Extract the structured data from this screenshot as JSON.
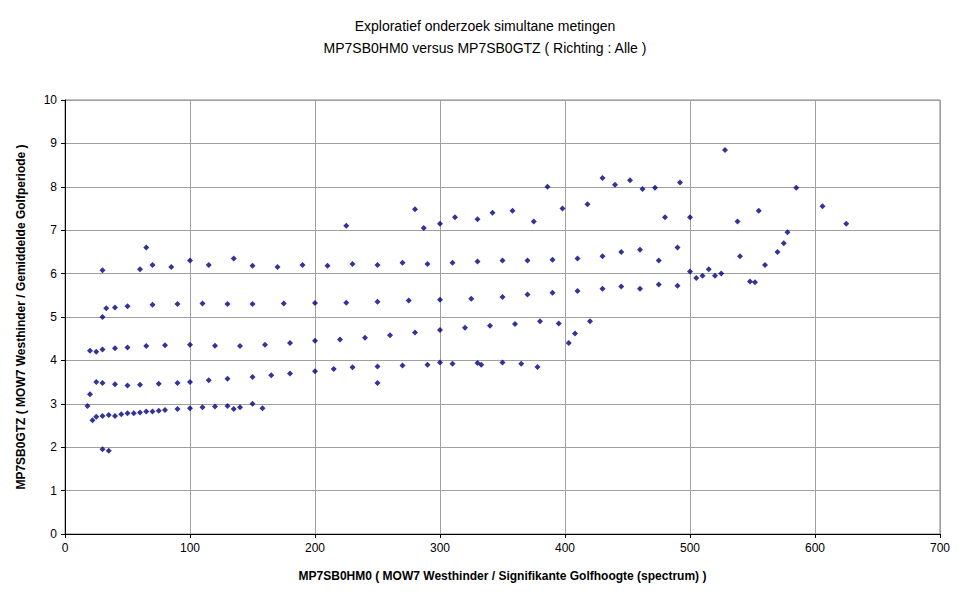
{
  "chart_data": {
    "type": "scatter",
    "title": "Exploratief onderzoek simultane metingen",
    "subtitle": "MP7SB0HM0 versus MP7SB0GTZ ( Richting : Alle )",
    "x_label": "MP7SB0HM0 ( MOW7 Westhinder / Signifikante Golfhoogte (spectrum) )",
    "y_label": "MP7SB0GTZ ( MOW7 Westhinder / Gemiddelde Golfperiode )",
    "color": "#000080",
    "marker": "diamond",
    "grid": true,
    "xlim": [
      0,
      700
    ],
    "xticks": [
      0,
      100,
      200,
      300,
      400,
      500,
      600,
      700
    ],
    "ylim": [
      0,
      10
    ],
    "yticks": [
      0,
      1,
      2,
      3,
      4,
      5,
      6,
      7,
      8,
      9,
      10
    ],
    "x": [
      25,
      30,
      35,
      40,
      45,
      50,
      55,
      60,
      65,
      70,
      75,
      80,
      90,
      100,
      110,
      120,
      130,
      135,
      140,
      150,
      158,
      25,
      30,
      40,
      50,
      60,
      75,
      90,
      100,
      115,
      130,
      150,
      165,
      180,
      200,
      215,
      230,
      250,
      270,
      290,
      310,
      330,
      350,
      365,
      378,
      300,
      333,
      250,
      20,
      25,
      30,
      40,
      50,
      65,
      80,
      100,
      120,
      140,
      160,
      180,
      200,
      220,
      240,
      260,
      280,
      300,
      320,
      340,
      360,
      380,
      395,
      403,
      408,
      420,
      30,
      33,
      40,
      50,
      70,
      90,
      110,
      130,
      150,
      175,
      200,
      225,
      250,
      275,
      300,
      325,
      350,
      370,
      390,
      410,
      430,
      445,
      460,
      475,
      490,
      505,
      520,
      548,
      552,
      30,
      60,
      65,
      70,
      85,
      100,
      115,
      135,
      150,
      170,
      190,
      210,
      230,
      250,
      270,
      290,
      310,
      330,
      350,
      370,
      390,
      410,
      430,
      445,
      460,
      475,
      490,
      500,
      510,
      515,
      525,
      540,
      560,
      570,
      575,
      578,
      225,
      280,
      287,
      300,
      312,
      330,
      342,
      358,
      375,
      386,
      398,
      418,
      430,
      440,
      452,
      462,
      472,
      480,
      492,
      500,
      528,
      538,
      555,
      585,
      606,
      625,
      30,
      35,
      18,
      20,
      22
    ],
    "values": [
      2.7,
      2.72,
      2.74,
      2.72,
      2.76,
      2.78,
      2.78,
      2.8,
      2.82,
      2.82,
      2.84,
      2.86,
      2.88,
      2.9,
      2.92,
      2.94,
      2.95,
      2.88,
      2.92,
      3.0,
      2.9,
      3.5,
      3.48,
      3.45,
      3.42,
      3.44,
      3.46,
      3.48,
      3.5,
      3.54,
      3.58,
      3.62,
      3.66,
      3.7,
      3.75,
      3.8,
      3.84,
      3.86,
      3.88,
      3.9,
      3.92,
      3.94,
      3.95,
      3.92,
      3.85,
      3.95,
      3.9,
      3.48,
      4.22,
      4.2,
      4.25,
      4.28,
      4.3,
      4.33,
      4.35,
      4.36,
      4.34,
      4.33,
      4.36,
      4.4,
      4.45,
      4.48,
      4.52,
      4.58,
      4.64,
      4.7,
      4.75,
      4.8,
      4.84,
      4.9,
      4.85,
      4.4,
      4.62,
      4.9,
      5.0,
      5.2,
      5.22,
      5.25,
      5.28,
      5.3,
      5.31,
      5.3,
      5.3,
      5.31,
      5.32,
      5.33,
      5.35,
      5.38,
      5.4,
      5.42,
      5.46,
      5.52,
      5.56,
      5.6,
      5.65,
      5.7,
      5.65,
      5.75,
      5.72,
      5.9,
      5.95,
      5.82,
      5.8,
      6.08,
      6.1,
      6.6,
      6.2,
      6.15,
      6.3,
      6.2,
      6.35,
      6.18,
      6.15,
      6.2,
      6.18,
      6.22,
      6.2,
      6.25,
      6.22,
      6.25,
      6.28,
      6.3,
      6.3,
      6.32,
      6.35,
      6.4,
      6.5,
      6.55,
      6.3,
      6.6,
      6.05,
      5.95,
      6.1,
      6.0,
      6.4,
      6.2,
      6.5,
      6.7,
      6.95,
      7.1,
      7.48,
      7.05,
      7.15,
      7.3,
      7.25,
      7.4,
      7.45,
      7.2,
      8.0,
      7.5,
      7.6,
      8.2,
      8.05,
      8.15,
      7.95,
      7.98,
      7.3,
      8.1,
      7.3,
      8.85,
      7.2,
      7.45,
      7.98,
      7.55,
      7.15,
      1.95,
      1.92,
      2.95,
      3.22,
      2.62
    ]
  }
}
